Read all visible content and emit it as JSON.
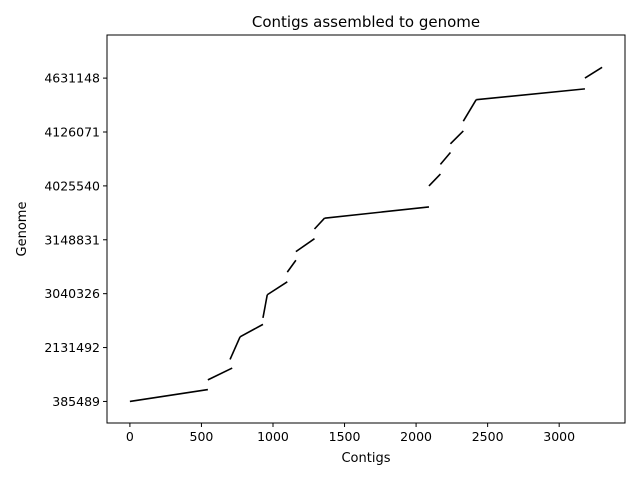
{
  "chart_data": {
    "type": "line",
    "title": "Contigs assembled to genome",
    "xlabel": "Contigs",
    "ylabel": "Genome",
    "xlim": [
      -160,
      3460
    ],
    "ylim": [
      -0.4,
      6.8
    ],
    "x_ticks": [
      0,
      500,
      1000,
      1500,
      2000,
      2500,
      3000
    ],
    "y_ticks": [
      {
        "pos": 0,
        "label": "385489"
      },
      {
        "pos": 1,
        "label": "2131492"
      },
      {
        "pos": 2,
        "label": "3040326"
      },
      {
        "pos": 3,
        "label": "3148831"
      },
      {
        "pos": 4,
        "label": "4025540"
      },
      {
        "pos": 5,
        "label": "4126071"
      },
      {
        "pos": 6,
        "label": "4631148"
      }
    ],
    "grid": false,
    "line_color": "#000000",
    "segments": [
      {
        "x": [
          0,
          545
        ],
        "y": [
          0.0,
          0.22
        ]
      },
      {
        "x": [
          545,
          715
        ],
        "y": [
          0.4,
          0.62
        ]
      },
      {
        "x": [
          700,
          770
        ],
        "y": [
          0.78,
          1.2
        ]
      },
      {
        "x": [
          770,
          930
        ],
        "y": [
          1.2,
          1.43
        ]
      },
      {
        "x": [
          930,
          960
        ],
        "y": [
          1.55,
          1.98
        ]
      },
      {
        "x": [
          960,
          1100
        ],
        "y": [
          1.98,
          2.22
        ]
      },
      {
        "x": [
          1100,
          1160
        ],
        "y": [
          2.4,
          2.62
        ]
      },
      {
        "x": [
          1160,
          1290
        ],
        "y": [
          2.78,
          3.02
        ]
      },
      {
        "x": [
          1290,
          1360
        ],
        "y": [
          3.2,
          3.4
        ]
      },
      {
        "x": [
          1360,
          2090
        ],
        "y": [
          3.4,
          3.61
        ]
      },
      {
        "x": [
          2090,
          2170
        ],
        "y": [
          4.0,
          4.22
        ]
      },
      {
        "x": [
          2170,
          2240
        ],
        "y": [
          4.4,
          4.62
        ]
      },
      {
        "x": [
          2240,
          2330
        ],
        "y": [
          4.78,
          5.02
        ]
      },
      {
        "x": [
          2330,
          2420
        ],
        "y": [
          5.2,
          5.6
        ]
      },
      {
        "x": [
          2420,
          3180
        ],
        "y": [
          5.6,
          5.8
        ]
      },
      {
        "x": [
          3180,
          3300
        ],
        "y": [
          6.0,
          6.2
        ]
      }
    ]
  }
}
